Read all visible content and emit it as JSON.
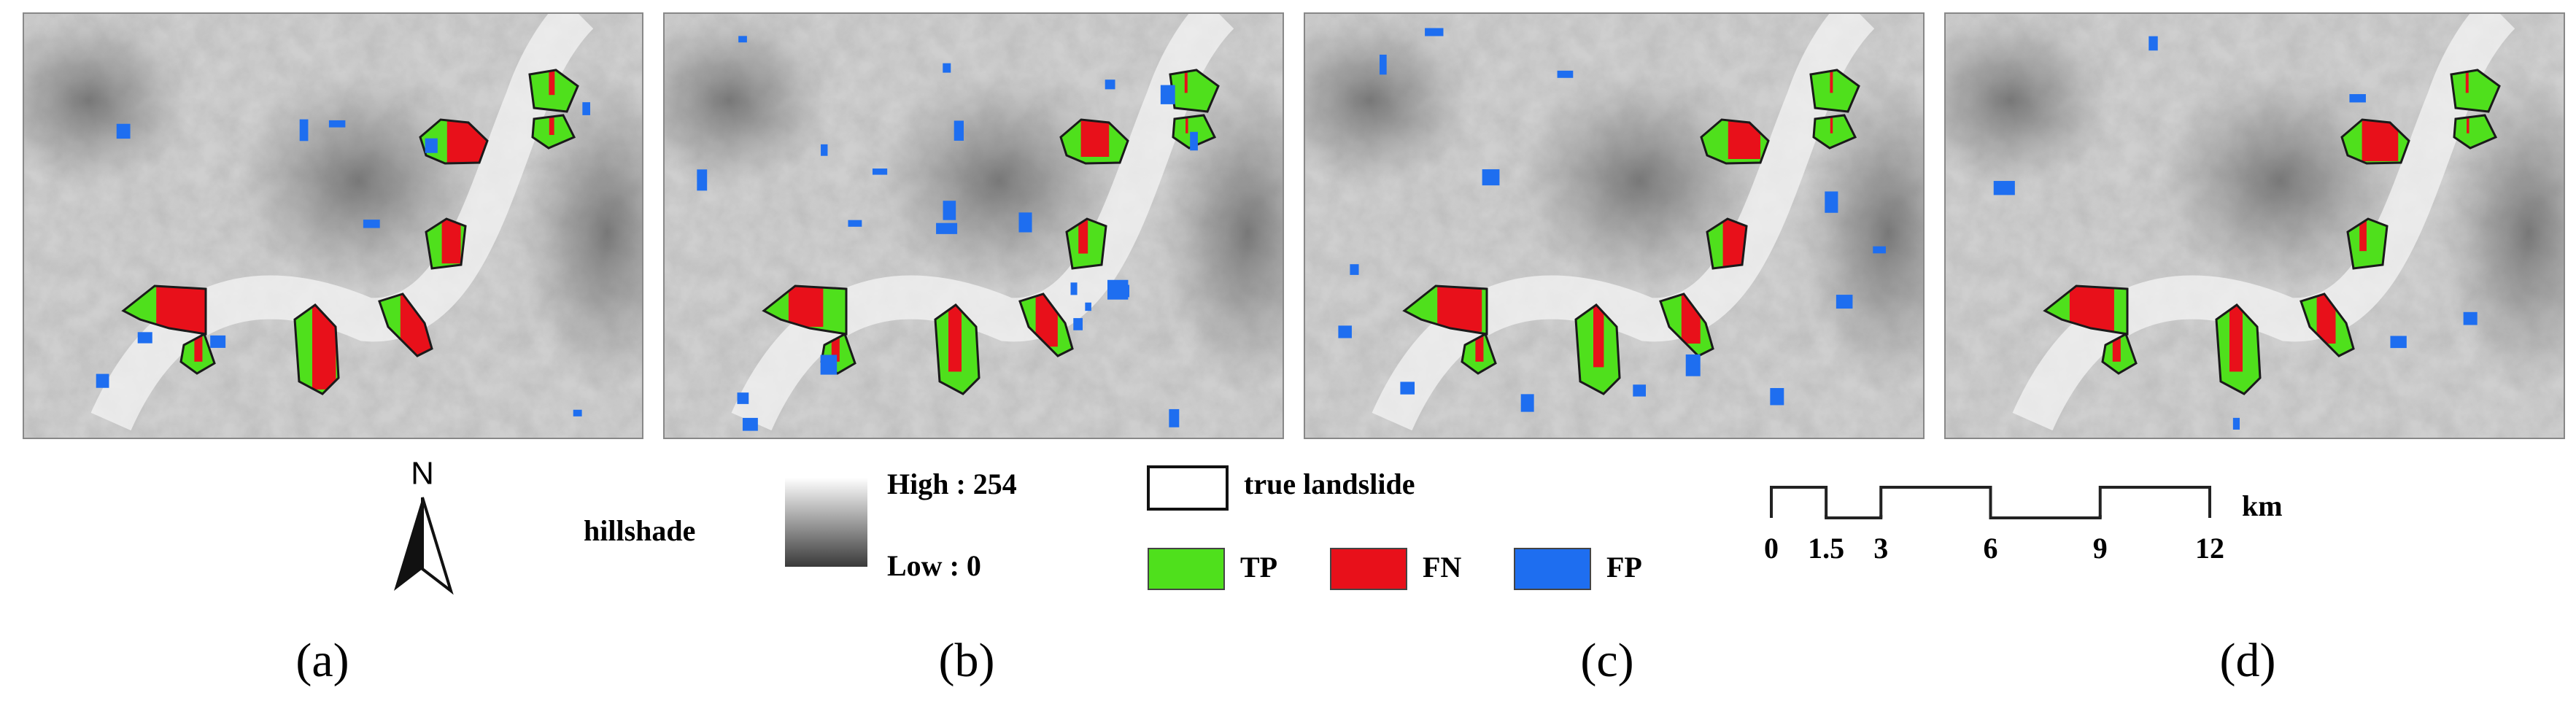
{
  "panels": [
    {
      "label": "(a)"
    },
    {
      "label": "(b)"
    },
    {
      "label": "(c)"
    },
    {
      "label": "(d)"
    }
  ],
  "legend": {
    "north": "N",
    "hillshade": {
      "title": "hillshade",
      "high": "High : 254",
      "low": "Low : 0"
    },
    "true_landslide": "true landslide",
    "classes": [
      {
        "label": "TP",
        "color": "#4fe01c"
      },
      {
        "label": "FN",
        "color": "#e8101a"
      },
      {
        "label": "FP",
        "color": "#1e6ef0"
      }
    ],
    "scale_bar": {
      "unit": "km",
      "ticks": [
        0,
        1.5,
        3,
        6,
        9,
        12
      ]
    }
  }
}
